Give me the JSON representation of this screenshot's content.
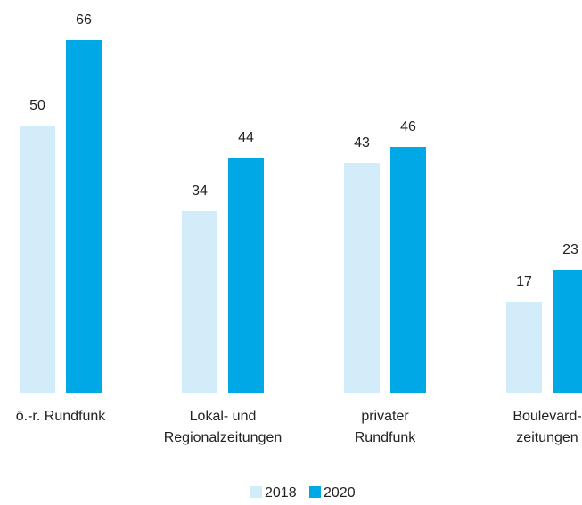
{
  "chart_data": {
    "type": "bar",
    "categories": [
      "ö.-r. Rundfunk",
      "Lokal- und\nRegionalzeitungen",
      "privater\nRundfunk",
      "Boulevard-\nzeitungen"
    ],
    "series": [
      {
        "name": "2018",
        "color": "#d3ecf9",
        "values": [
          50,
          34,
          43,
          17
        ]
      },
      {
        "name": "2020",
        "color": "#00a9e6",
        "values": [
          66,
          44,
          46,
          23
        ]
      }
    ],
    "legend": "bottom"
  }
}
